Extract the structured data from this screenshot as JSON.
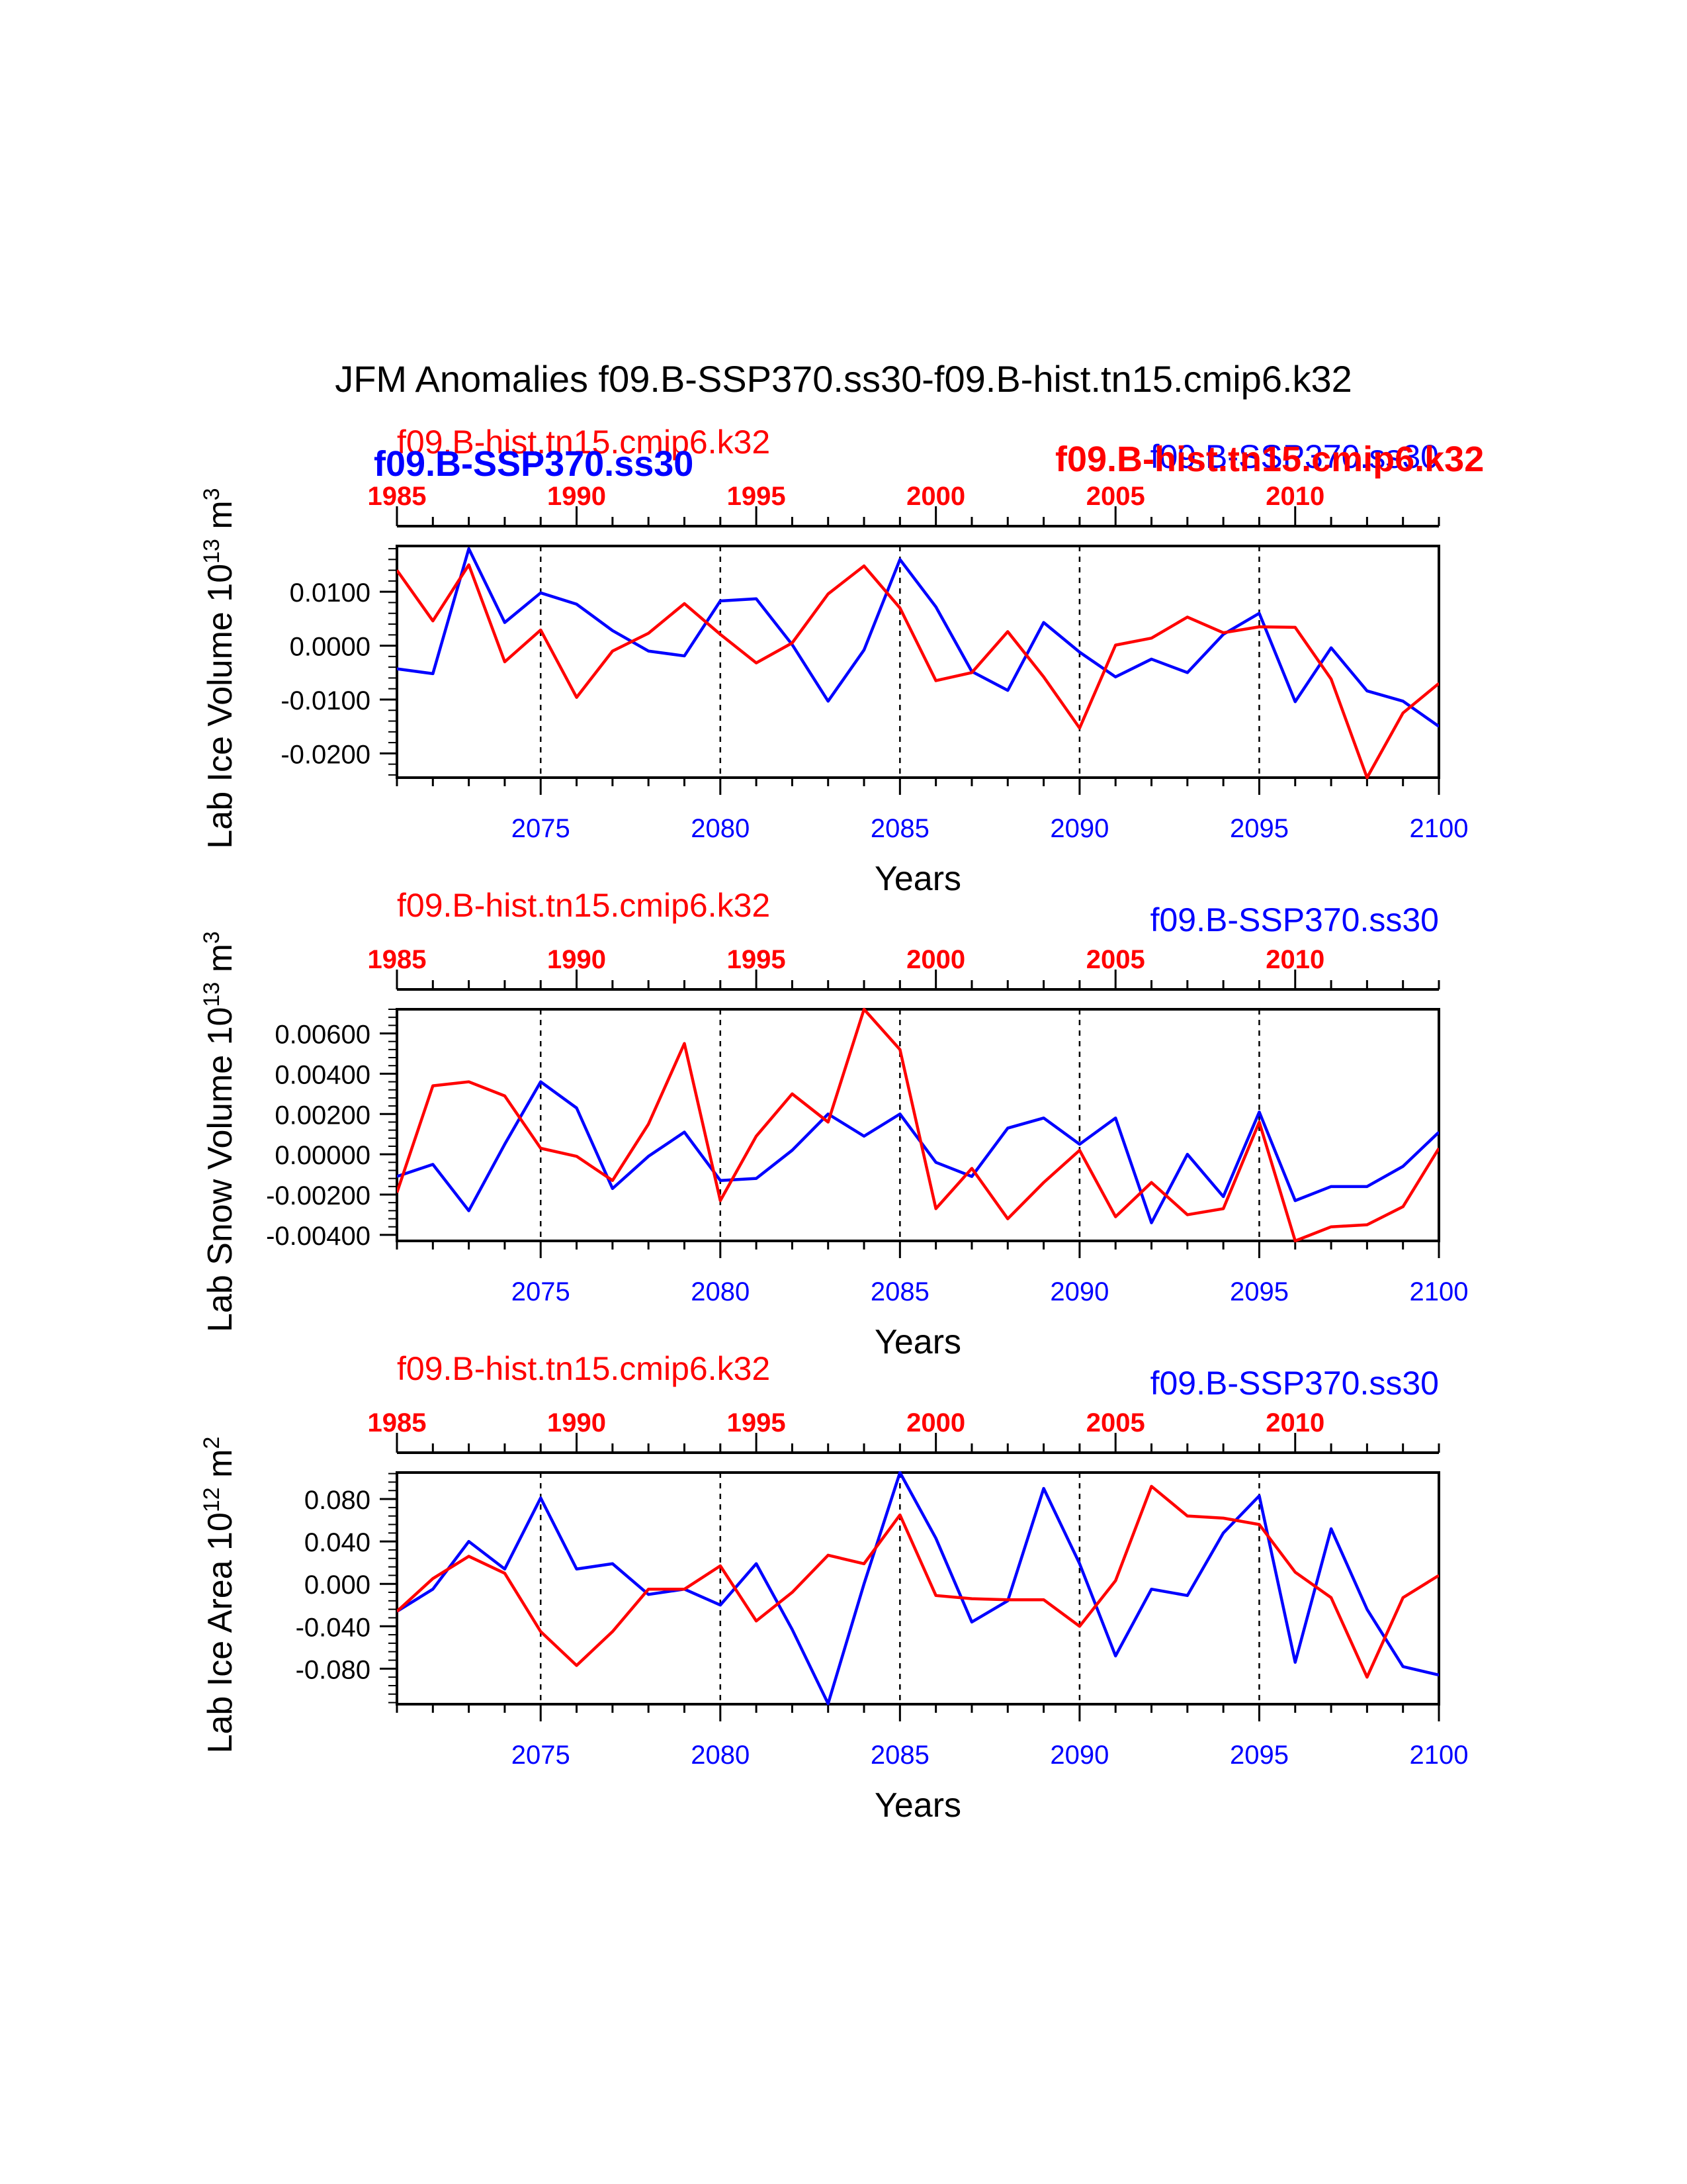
{
  "title": "JFM Anomalies f09.B-SSP370.ss30-f09.B-hist.tn15.cmip6.k32",
  "colors": {
    "red": "#ff0000",
    "blue": "#0000ff",
    "axis": "#000000"
  },
  "overlays": {
    "bold_blue": "f09.B-SSP370.ss30",
    "bold_red": "f09.B-hist.tn15.cmip6.k32"
  },
  "chart_data": [
    {
      "type": "line",
      "ylabel": "Lab Ice Volume 10",
      "ylabel_exp": "13",
      "ylabel_unit": "m",
      "ylabel_unit_exp": "3",
      "xlabel": "Years",
      "red_label": "f09.B-hist.tn15.cmip6.k32",
      "blue_label": "f09.B-SSP370.ss30",
      "x": [
        2071,
        2072,
        2073,
        2074,
        2075,
        2076,
        2077,
        2078,
        2079,
        2080,
        2081,
        2082,
        2083,
        2084,
        2085,
        2086,
        2087,
        2088,
        2089,
        2090,
        2091,
        2092,
        2093,
        2094,
        2095,
        2096,
        2097,
        2098,
        2099,
        2100
      ],
      "xlim": [
        2071,
        2100
      ],
      "ylim": [
        -0.0245,
        0.0185
      ],
      "yticks": [
        -0.02,
        -0.01,
        0.0,
        0.01
      ],
      "ytick_labels": [
        "-0.0200",
        "-0.0100",
        "0.0000",
        "0.0100"
      ],
      "bottom_ticks": [
        2075,
        2080,
        2085,
        2090,
        2095,
        2100
      ],
      "top_tick_labels": [
        "1985",
        "1990",
        "1995",
        "2000",
        "2005",
        "2010"
      ],
      "series": [
        {
          "name": "f09.B-SSP370.ss30",
          "color": "#0000ff",
          "values": [
            -0.0043,
            -0.0052,
            0.018,
            0.0043,
            0.0098,
            0.0077,
            0.0028,
            -0.001,
            -0.0019,
            0.0083,
            0.0087,
            0.0002,
            -0.0103,
            -0.0008,
            0.016,
            0.0072,
            -0.0048,
            -0.0083,
            0.0043,
            -0.0012,
            -0.0058,
            -0.0025,
            -0.005,
            0.0021,
            0.006,
            -0.0104,
            -0.0004,
            -0.0084,
            -0.0103,
            -0.015
          ]
        },
        {
          "name": "f09.B-hist.tn15.cmip6.k32",
          "color": "#ff0000",
          "values": [
            0.014,
            0.0046,
            0.015,
            -0.003,
            0.0029,
            -0.0096,
            -0.001,
            0.0023,
            0.0078,
            0.0021,
            -0.0032,
            0.0005,
            0.0096,
            0.0148,
            0.007,
            -0.0065,
            -0.005,
            0.0026,
            -0.0058,
            -0.0153,
            0.0001,
            0.0014,
            0.0053,
            0.0024,
            0.0035,
            0.0034,
            -0.0062,
            -0.0245,
            -0.0125,
            -0.007
          ]
        }
      ]
    },
    {
      "type": "line",
      "ylabel": "Lab Snow Volume 10",
      "ylabel_exp": "13",
      "ylabel_unit": "m",
      "ylabel_unit_exp": "3",
      "xlabel": "Years",
      "red_label": "f09.B-hist.tn15.cmip6.k32",
      "blue_label": "f09.B-SSP370.ss30",
      "x": [
        2071,
        2072,
        2073,
        2074,
        2075,
        2076,
        2077,
        2078,
        2079,
        2080,
        2081,
        2082,
        2083,
        2084,
        2085,
        2086,
        2087,
        2088,
        2089,
        2090,
        2091,
        2092,
        2093,
        2094,
        2095,
        2096,
        2097,
        2098,
        2099,
        2100
      ],
      "xlim": [
        2071,
        2100
      ],
      "ylim": [
        -0.0043,
        0.0072
      ],
      "yticks": [
        -0.004,
        -0.002,
        0.0,
        0.002,
        0.004,
        0.006
      ],
      "ytick_labels": [
        "-0.00400",
        "-0.00200",
        "0.00000",
        "0.00200",
        "0.00400",
        "0.00600"
      ],
      "bottom_ticks": [
        2075,
        2080,
        2085,
        2090,
        2095,
        2100
      ],
      "top_tick_labels": [
        "1985",
        "1990",
        "1995",
        "2000",
        "2005",
        "2010"
      ],
      "series": [
        {
          "name": "f09.B-SSP370.ss30",
          "color": "#0000ff",
          "values": [
            -0.0011,
            -0.0005,
            -0.0028,
            0.0005,
            0.0036,
            0.0023,
            -0.0017,
            -0.0001,
            0.0011,
            -0.0013,
            -0.0012,
            0.0002,
            0.002,
            0.0009,
            0.002,
            -0.0004,
            -0.0011,
            0.0013,
            0.0018,
            0.0005,
            0.0018,
            -0.0034,
            0.0,
            -0.0021,
            0.0021,
            -0.0023,
            -0.0016,
            -0.0016,
            -0.0006,
            0.0011
          ]
        },
        {
          "name": "f09.B-hist.tn15.cmip6.k32",
          "color": "#ff0000",
          "values": [
            -0.0019,
            0.0034,
            0.0036,
            0.0029,
            0.0003,
            -0.0001,
            -0.0013,
            0.0015,
            0.0055,
            -0.0023,
            0.0009,
            0.003,
            0.0016,
            0.0072,
            0.0052,
            -0.0027,
            -0.0007,
            -0.0032,
            -0.0014,
            0.0002,
            -0.0031,
            -0.0014,
            -0.003,
            -0.0027,
            0.0016,
            -0.0043,
            -0.0036,
            -0.0035,
            -0.0026,
            0.0003
          ]
        }
      ]
    },
    {
      "type": "line",
      "ylabel": "Lab Ice Area 10",
      "ylabel_exp": "12",
      "ylabel_unit": "m",
      "ylabel_unit_exp": "2",
      "xlabel": "Years",
      "red_label": "f09.B-hist.tn15.cmip6.k32",
      "blue_label": "f09.B-SSP370.ss30",
      "x": [
        2071,
        2072,
        2073,
        2074,
        2075,
        2076,
        2077,
        2078,
        2079,
        2080,
        2081,
        2082,
        2083,
        2084,
        2085,
        2086,
        2087,
        2088,
        2089,
        2090,
        2091,
        2092,
        2093,
        2094,
        2095,
        2096,
        2097,
        2098,
        2099,
        2100
      ],
      "xlim": [
        2071,
        2100
      ],
      "ylim": [
        -0.1135,
        0.105
      ],
      "yticks": [
        -0.08,
        -0.04,
        0.0,
        0.04,
        0.08
      ],
      "ytick_labels": [
        "-0.080",
        "-0.040",
        "0.000",
        "0.040",
        "0.080"
      ],
      "bottom_ticks": [
        2075,
        2080,
        2085,
        2090,
        2095,
        2100
      ],
      "top_tick_labels": [
        "1985",
        "1990",
        "1995",
        "2000",
        "2005",
        "2010"
      ],
      "series": [
        {
          "name": "f09.B-SSP370.ss30",
          "color": "#0000ff",
          "values": [
            -0.026,
            -0.005,
            0.04,
            0.014,
            0.081,
            0.014,
            0.019,
            -0.01,
            -0.005,
            -0.02,
            0.019,
            -0.043,
            -0.113,
            0.0,
            0.105,
            0.043,
            -0.036,
            -0.016,
            0.09,
            0.019,
            -0.068,
            -0.005,
            -0.011,
            0.048,
            0.083,
            -0.074,
            0.052,
            -0.024,
            -0.078,
            -0.086
          ]
        },
        {
          "name": "f09.B-hist.tn15.cmip6.k32",
          "color": "#ff0000",
          "values": [
            -0.026,
            0.005,
            0.026,
            0.01,
            -0.045,
            -0.077,
            -0.045,
            -0.005,
            -0.005,
            0.017,
            -0.035,
            -0.008,
            0.027,
            0.019,
            0.065,
            -0.011,
            -0.014,
            -0.015,
            -0.015,
            -0.04,
            0.003,
            0.092,
            0.064,
            0.062,
            0.056,
            0.011,
            -0.013,
            -0.088,
            -0.013,
            0.008
          ]
        }
      ]
    }
  ]
}
